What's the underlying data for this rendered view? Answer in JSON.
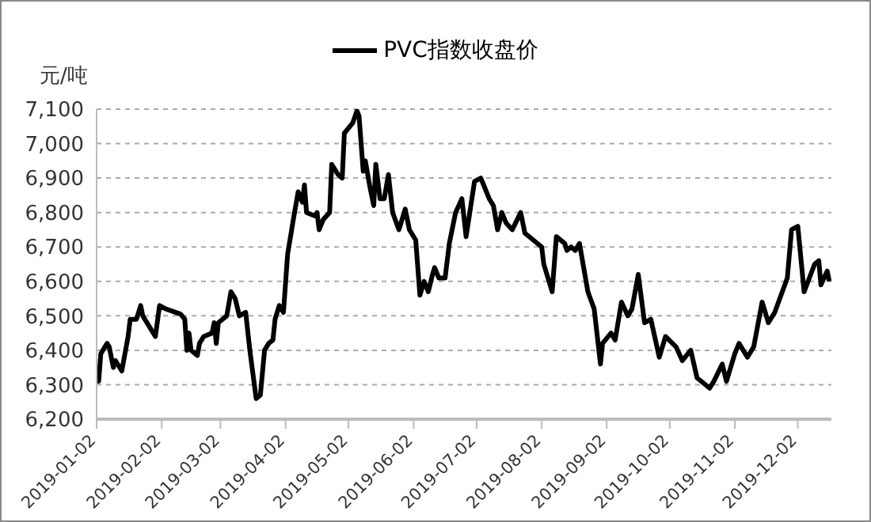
{
  "chart_data": {
    "type": "line",
    "ylabel": "元/吨",
    "legend": "top",
    "grid": "y",
    "line_style": "solid",
    "marker": "none",
    "xlim": [
      "2019-01-02",
      "2019-12-18"
    ],
    "xticks": [
      "2019-01-02",
      "2019-02-02",
      "2019-03-02",
      "2019-04-02",
      "2019-05-02",
      "2019-06-02",
      "2019-07-02",
      "2019-08-02",
      "2019-09-02",
      "2019-10-02",
      "2019-11-02",
      "2019-12-02"
    ],
    "ylim": [
      6200,
      7100
    ],
    "yticks": [
      {
        "value": 6200,
        "label": "6,200"
      },
      {
        "value": 6300,
        "label": "6,300"
      },
      {
        "value": 6400,
        "label": "6,400"
      },
      {
        "value": 6500,
        "label": "6,500"
      },
      {
        "value": 6600,
        "label": "6,600"
      },
      {
        "value": 6700,
        "label": "6,700"
      },
      {
        "value": 6800,
        "label": "6,800"
      },
      {
        "value": 6900,
        "label": "6,900"
      },
      {
        "value": 7000,
        "label": "7,000"
      },
      {
        "value": 7100,
        "label": "7,100"
      }
    ],
    "x": [
      "2019-01-02",
      "2019-01-03",
      "2019-01-04",
      "2019-01-07",
      "2019-01-08",
      "2019-01-10",
      "2019-01-11",
      "2019-01-14",
      "2019-01-17",
      "2019-01-18",
      "2019-01-21",
      "2019-01-23",
      "2019-01-24",
      "2019-01-30",
      "2019-02-01",
      "2019-02-04",
      "2019-02-11",
      "2019-02-13",
      "2019-02-14",
      "2019-02-15",
      "2019-02-16",
      "2019-02-19",
      "2019-02-20",
      "2019-02-22",
      "2019-02-26",
      "2019-02-27",
      "2019-02-28",
      "2019-03-01",
      "2019-03-05",
      "2019-03-07",
      "2019-03-09",
      "2019-03-11",
      "2019-03-14",
      "2019-03-16",
      "2019-03-19",
      "2019-03-21",
      "2019-03-23",
      "2019-03-25",
      "2019-03-27",
      "2019-03-28",
      "2019-03-30",
      "2019-04-01",
      "2019-04-03",
      "2019-04-06",
      "2019-04-08",
      "2019-04-10",
      "2019-04-11",
      "2019-04-12",
      "2019-04-16",
      "2019-04-17",
      "2019-04-18",
      "2019-04-20",
      "2019-04-23",
      "2019-04-24",
      "2019-04-27",
      "2019-04-29",
      "2019-04-30",
      "2019-05-04",
      "2019-05-06",
      "2019-05-07",
      "2019-05-09",
      "2019-05-10",
      "2019-05-12",
      "2019-05-14",
      "2019-05-15",
      "2019-05-17",
      "2019-05-19",
      "2019-05-21",
      "2019-05-23",
      "2019-05-26",
      "2019-05-29",
      "2019-05-31",
      "2019-06-03",
      "2019-06-05",
      "2019-06-07",
      "2019-06-09",
      "2019-06-11",
      "2019-06-12",
      "2019-06-14",
      "2019-06-17",
      "2019-06-19",
      "2019-06-22",
      "2019-06-25",
      "2019-06-27",
      "2019-07-01",
      "2019-07-04",
      "2019-07-08",
      "2019-07-10",
      "2019-07-12",
      "2019-07-14",
      "2019-07-16",
      "2019-07-19",
      "2019-07-23",
      "2019-07-25",
      "2019-07-29",
      "2019-08-02",
      "2019-08-03",
      "2019-08-07",
      "2019-08-09",
      "2019-08-13",
      "2019-08-14",
      "2019-08-16",
      "2019-08-18",
      "2019-08-20",
      "2019-08-24",
      "2019-08-27",
      "2019-08-30",
      "2019-08-31",
      "2019-09-04",
      "2019-09-06",
      "2019-09-09",
      "2019-09-12",
      "2019-09-14",
      "2019-09-17",
      "2019-09-20",
      "2019-09-23",
      "2019-09-27",
      "2019-09-30",
      "2019-10-05",
      "2019-10-08",
      "2019-10-12",
      "2019-10-15",
      "2019-10-21",
      "2019-10-23",
      "2019-10-27",
      "2019-10-29",
      "2019-11-02",
      "2019-11-04",
      "2019-11-08",
      "2019-11-11",
      "2019-11-15",
      "2019-11-18",
      "2019-11-21",
      "2019-11-24",
      "2019-11-27",
      "2019-11-29",
      "2019-12-02",
      "2019-12-05",
      "2019-12-10",
      "2019-12-12",
      "2019-12-13",
      "2019-12-16",
      "2019-12-17"
    ],
    "series": [
      {
        "name": "PVC指数收盘价",
        "color": "#000000",
        "values": [
          6340,
          6310,
          6390,
          6420,
          6410,
          6350,
          6370,
          6340,
          6440,
          6490,
          6490,
          6530,
          6500,
          6440,
          6530,
          6520,
          6505,
          6490,
          6400,
          6450,
          6400,
          6385,
          6420,
          6440,
          6450,
          6480,
          6420,
          6480,
          6500,
          6570,
          6550,
          6500,
          6510,
          6400,
          6260,
          6270,
          6400,
          6420,
          6430,
          6490,
          6530,
          6510,
          6680,
          6790,
          6860,
          6830,
          6880,
          6800,
          6790,
          6800,
          6750,
          6780,
          6800,
          6940,
          6910,
          6900,
          7030,
          7060,
          7095,
          7080,
          6920,
          6950,
          6880,
          6820,
          6940,
          6840,
          6840,
          6910,
          6800,
          6750,
          6810,
          6750,
          6720,
          6560,
          6600,
          6570,
          6620,
          6640,
          6610,
          6610,
          6710,
          6800,
          6840,
          6730,
          6890,
          6900,
          6840,
          6820,
          6750,
          6800,
          6770,
          6750,
          6800,
          6740,
          6720,
          6700,
          6650,
          6570,
          6730,
          6710,
          6690,
          6700,
          6690,
          6710,
          6570,
          6520,
          6360,
          6420,
          6450,
          6430,
          6540,
          6500,
          6520,
          6620,
          6480,
          6490,
          6380,
          6440,
          6410,
          6370,
          6400,
          6320,
          6290,
          6310,
          6360,
          6310,
          6390,
          6420,
          6380,
          6410,
          6540,
          6480,
          6510,
          6560,
          6610,
          6750,
          6760,
          6570,
          6650,
          6660,
          6590,
          6630,
          6600
        ]
      }
    ]
  }
}
